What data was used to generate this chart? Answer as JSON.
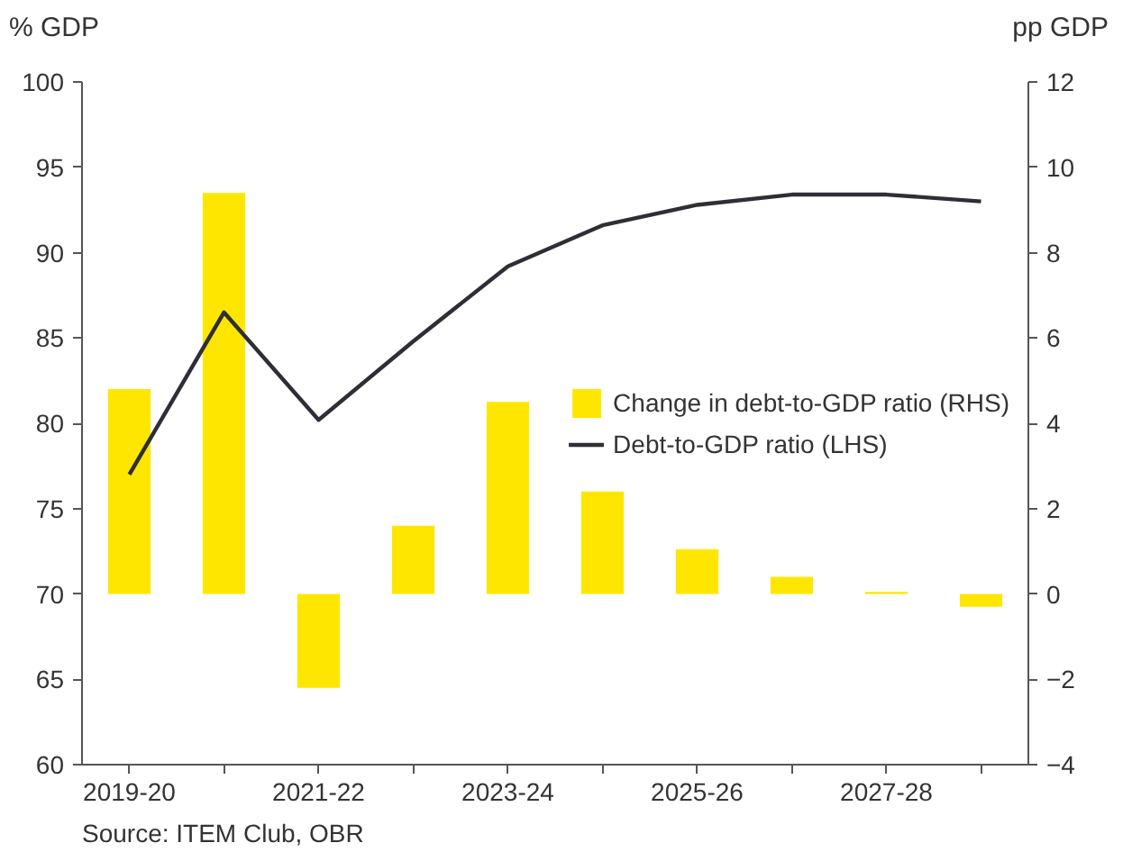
{
  "chart_data": {
    "type": "bar",
    "ylabel": "% GDP",
    "y2label": "pp GDP",
    "categories": [
      "2019-20",
      null,
      "2021-22",
      null,
      "2023-24",
      null,
      "2025-26",
      null,
      "2027-28",
      null
    ],
    "series": [
      {
        "name": "Change in debt-to-GDP ratio (RHS)",
        "axis": "y2",
        "color": "#ffe600",
        "values": [
          4.8,
          9.4,
          -2.2,
          1.6,
          4.5,
          2.4,
          1.05,
          0.4,
          0.05,
          -0.3
        ]
      },
      {
        "name": "Debt-to-GDP ratio (LHS)",
        "type": "line",
        "color": "#2e2e38",
        "values": [
          77.0,
          86.5,
          80.2,
          84.8,
          89.2,
          91.6,
          92.8,
          93.4,
          93.4,
          93.0
        ]
      }
    ],
    "ylim": [
      60,
      100
    ],
    "yticks": [
      60,
      65,
      70,
      75,
      80,
      85,
      90,
      95,
      100
    ],
    "y2lim": [
      -4,
      12
    ],
    "y2ticks": [
      -4,
      -2,
      0,
      2,
      4,
      6,
      8,
      10,
      12
    ],
    "grid": false,
    "legend": "right",
    "annotations": [
      "Source: ITEM Club, OBR"
    ]
  }
}
